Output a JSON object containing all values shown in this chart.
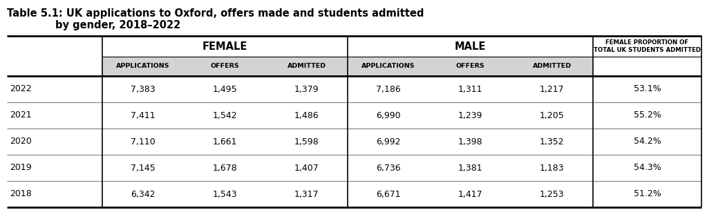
{
  "title_line1": "Table 5.1: UK applications to Oxford, offers made and students admitted",
  "title_line2": "by gender, 2018–2022",
  "col_group_female": "FEMALE",
  "col_group_male": "MALE",
  "col_headers": [
    "APPLICATIONS",
    "OFFERS",
    "ADMITTED",
    "APPLICATIONS",
    "OFFERS",
    "ADMITTED"
  ],
  "last_col_header_line1": "FEMALE PROPORTION OF",
  "last_col_header_line2": "TOTAL UK STUDENTS ADMITTED",
  "years": [
    "2022",
    "2021",
    "2020",
    "2019",
    "2018"
  ],
  "female_applications": [
    "7,383",
    "7,411",
    "7,110",
    "7,145",
    "6,342"
  ],
  "female_offers": [
    "1,495",
    "1,542",
    "1,661",
    "1,678",
    "1,543"
  ],
  "female_admitted": [
    "1,379",
    "1,486",
    "1,598",
    "1,407",
    "1,317"
  ],
  "male_applications": [
    "7,186",
    "6,990",
    "6,992",
    "6,736",
    "6,671"
  ],
  "male_offers": [
    "1,311",
    "1,239",
    "1,398",
    "1,381",
    "1,417"
  ],
  "male_admitted": [
    "1,217",
    "1,205",
    "1,352",
    "1,183",
    "1,253"
  ],
  "female_proportion": [
    "53.1%",
    "55.2%",
    "54.2%",
    "54.3%",
    "51.2%"
  ],
  "header_bg_color": "#d3d3d3",
  "bg_color": "#ffffff",
  "text_color": "#000000",
  "title_font_size": 10.5,
  "header_font_size": 6.8,
  "cell_font_size": 9,
  "year_font_size": 9,
  "group_header_font_size": 10.5,
  "last_col_font_size": 6.2
}
